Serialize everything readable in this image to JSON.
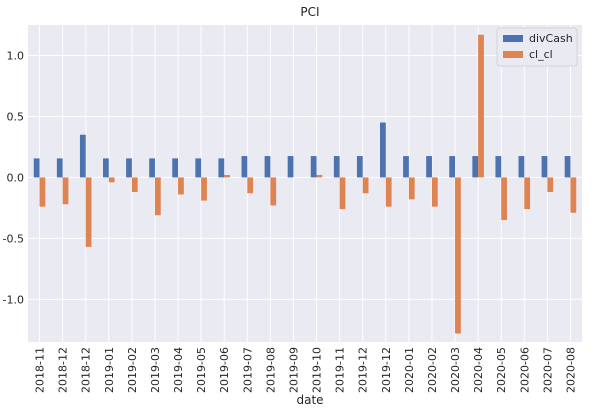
{
  "chart_data": {
    "type": "bar",
    "title": "PCI",
    "xlabel": "date",
    "ylabel": "",
    "ylim": [
      -1.35,
      1.25
    ],
    "yticks": [
      -1.0,
      -0.5,
      0.0,
      0.5,
      1.0
    ],
    "ytick_labels": [
      "-1.0",
      "-0.5",
      "0.0",
      "0.5",
      "1.0"
    ],
    "grid": true,
    "legend_position": "top-right",
    "categories": [
      "2018-11",
      "2018-12",
      "2018-12",
      "2019-01",
      "2019-02",
      "2019-03",
      "2019-04",
      "2019-05",
      "2019-06",
      "2019-07",
      "2019-08",
      "2019-09",
      "2019-10",
      "2019-11",
      "2019-12",
      "2019-12",
      "2020-01",
      "2020-02",
      "2020-03",
      "2020-04",
      "2020-05",
      "2020-06",
      "2020-07",
      "2020-08"
    ],
    "series": [
      {
        "name": "divCash",
        "color": "#4c72b0",
        "values": [
          0.156,
          0.156,
          0.35,
          0.156,
          0.156,
          0.156,
          0.156,
          0.156,
          0.156,
          0.175,
          0.175,
          0.175,
          0.175,
          0.175,
          0.175,
          0.45,
          0.175,
          0.175,
          0.175,
          0.175,
          0.175,
          0.175,
          0.175,
          0.175
        ]
      },
      {
        "name": "cl_cl",
        "color": "#dd8452",
        "values": [
          -0.24,
          -0.22,
          -0.57,
          -0.04,
          -0.12,
          -0.31,
          -0.14,
          -0.19,
          0.02,
          -0.13,
          -0.23,
          0.0,
          0.02,
          -0.26,
          -0.13,
          -0.24,
          -0.18,
          -0.24,
          -1.28,
          1.17,
          -0.35,
          -0.26,
          -0.12,
          -0.29
        ]
      }
    ]
  }
}
